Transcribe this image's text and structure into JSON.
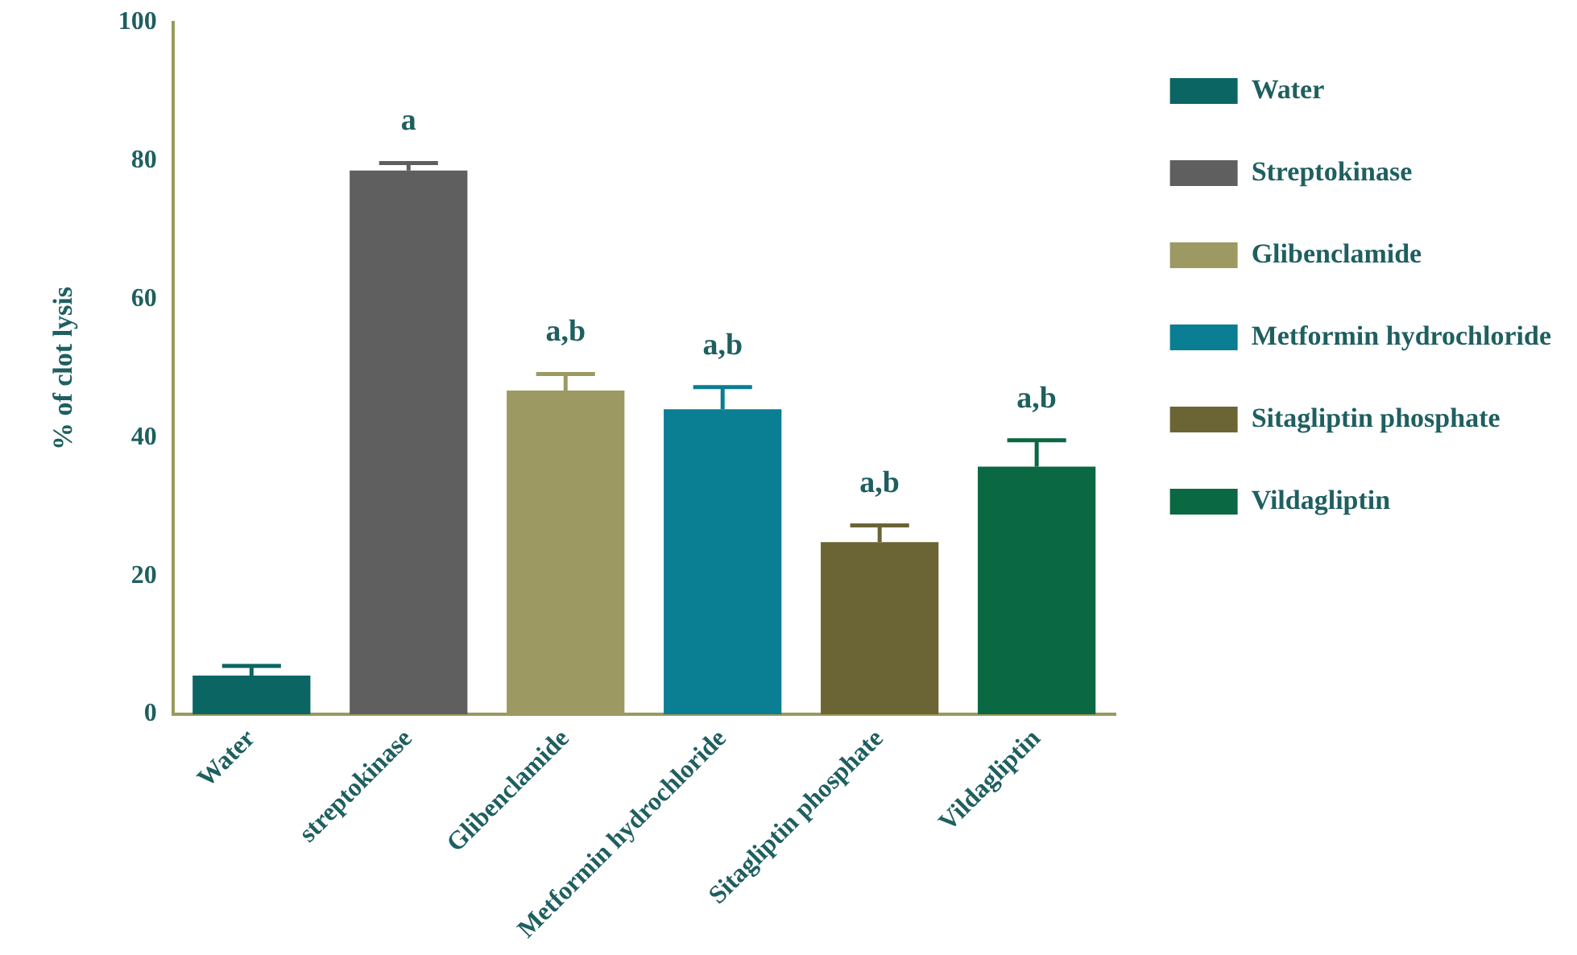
{
  "chart_data": {
    "type": "bar",
    "ylabel": "% of clot lysis",
    "categories": [
      "Water",
      "streptokinase",
      "Glibenclamide",
      "Metformin hydrochloride",
      "Sitagliptin phosphate",
      "Vildagliptin"
    ],
    "series": [
      {
        "name": "Water",
        "color": "#0b6563",
        "values": [
          5.6,
          null,
          null,
          null,
          null,
          null
        ],
        "errors": [
          [
            5.6,
            7.0
          ],
          null,
          null,
          null,
          null,
          null
        ]
      },
      {
        "name": "Streptokinase",
        "color": "#5f5f5f",
        "values": [
          null,
          78.6,
          null,
          null,
          null,
          null
        ],
        "errors": [
          null,
          [
            78.6,
            79.7
          ],
          null,
          null,
          null,
          null
        ]
      },
      {
        "name": "Glibenclamide",
        "color": "#9c9a62",
        "values": [
          null,
          null,
          46.8,
          null,
          null,
          null
        ],
        "errors": [
          null,
          null,
          [
            46.8,
            49.2
          ],
          null,
          null,
          null
        ]
      },
      {
        "name": "Metformin hydrochloride",
        "color": "#0a7e92",
        "values": [
          null,
          null,
          null,
          44.1,
          null,
          null
        ],
        "errors": [
          null,
          null,
          null,
          [
            44.1,
            47.3
          ],
          null,
          null
        ]
      },
      {
        "name": "Sitagliptin phosphate",
        "color": "#6b6535",
        "values": [
          null,
          null,
          null,
          null,
          24.9,
          null
        ],
        "errors": [
          null,
          null,
          null,
          null,
          [
            24.9,
            27.3
          ],
          null
        ]
      },
      {
        "name": "Vildagliptin",
        "color": "#0a6842",
        "values": [
          null,
          null,
          null,
          null,
          null,
          35.8
        ],
        "errors": [
          null,
          null,
          null,
          null,
          null,
          [
            35.8,
            39.6
          ]
        ]
      }
    ],
    "ylim": [
      0,
      100
    ],
    "yticks": [
      0,
      20,
      40,
      60,
      80,
      100
    ],
    "grid": false,
    "legend": "right",
    "annotations": [
      {
        "text": "a",
        "x": "streptokinase",
        "y": 78.6
      },
      {
        "text": "a,b",
        "x": "Glibenclamide",
        "y": 46.8
      },
      {
        "text": "a,b",
        "x": "Metformin hydrochloride",
        "y": 44.1
      },
      {
        "text": "a,b",
        "x": "Sitagliptin phosphate",
        "y": 24.9
      },
      {
        "text": "a,b",
        "x": "Vildagliptin",
        "y": 35.8
      }
    ]
  }
}
